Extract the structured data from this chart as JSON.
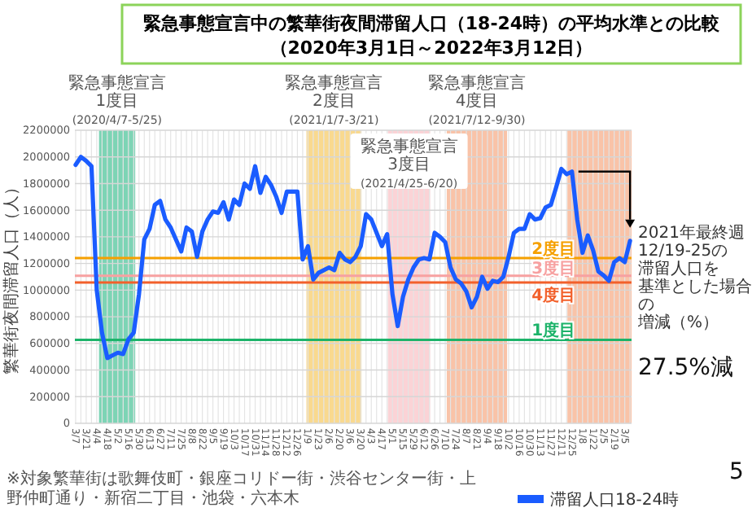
{
  "chart_data": {
    "type": "line",
    "title": "緊急事態宣言中の繁華街夜間滞留人口（18-24時）の平均水準との比較",
    "subtitle": "（2020年3月1日～2022年3月12日）",
    "ylabel": "繁華街夜間滞留人口（人）",
    "x": [
      "2020-03-07",
      "2020-03-14",
      "2020-03-21",
      "2020-03-28",
      "2020-04-04",
      "2020-04-11",
      "2020-04-18",
      "2020-04-25",
      "2020-05-02",
      "2020-05-09",
      "2020-05-16",
      "2020-05-23",
      "2020-05-30",
      "2020-06-06",
      "2020-06-13",
      "2020-06-20",
      "2020-06-27",
      "2020-07-04",
      "2020-07-11",
      "2020-07-18",
      "2020-07-25",
      "2020-08-01",
      "2020-08-08",
      "2020-08-15",
      "2020-08-22",
      "2020-08-29",
      "2020-09-05",
      "2020-09-12",
      "2020-09-19",
      "2020-09-26",
      "2020-10-03",
      "2020-10-10",
      "2020-10-17",
      "2020-10-24",
      "2020-10-31",
      "2020-11-07",
      "2020-11-14",
      "2020-11-21",
      "2020-11-28",
      "2020-12-05",
      "2020-12-12",
      "2020-12-19",
      "2020-12-26",
      "2021-01-02",
      "2021-01-09",
      "2021-01-16",
      "2021-01-23",
      "2021-01-30",
      "2021-02-06",
      "2021-02-13",
      "2021-02-20",
      "2021-02-27",
      "2021-03-06",
      "2021-03-13",
      "2021-03-20",
      "2021-03-27",
      "2021-04-03",
      "2021-04-10",
      "2021-04-17",
      "2021-04-24",
      "2021-05-01",
      "2021-05-08",
      "2021-05-15",
      "2021-05-22",
      "2021-05-29",
      "2021-06-05",
      "2021-06-12",
      "2021-06-19",
      "2021-06-26",
      "2021-07-03",
      "2021-07-10",
      "2021-07-17",
      "2021-07-24",
      "2021-07-31",
      "2021-08-07",
      "2021-08-14",
      "2021-08-21",
      "2021-08-28",
      "2021-09-04",
      "2021-09-11",
      "2021-09-18",
      "2021-09-25",
      "2021-10-02",
      "2021-10-09",
      "2021-10-16",
      "2021-10-23",
      "2021-10-30",
      "2021-11-06",
      "2021-11-13",
      "2021-11-20",
      "2021-11-27",
      "2021-12-04",
      "2021-12-11",
      "2021-12-18",
      "2021-12-25",
      "2022-01-01",
      "2022-01-08",
      "2022-01-15",
      "2022-01-22",
      "2022-01-29",
      "2022-02-05",
      "2022-02-12",
      "2022-02-19",
      "2022-02-26",
      "2022-03-05",
      "2022-03-12"
    ],
    "series": [
      {
        "name": "滞留人口18-24時",
        "color": "#1a5cff",
        "values": [
          1940000,
          2000000,
          1970000,
          1930000,
          1000000,
          680000,
          490000,
          510000,
          530000,
          520000,
          630000,
          680000,
          970000,
          1380000,
          1460000,
          1640000,
          1670000,
          1530000,
          1470000,
          1380000,
          1290000,
          1470000,
          1440000,
          1250000,
          1440000,
          1530000,
          1590000,
          1580000,
          1660000,
          1530000,
          1680000,
          1640000,
          1800000,
          1760000,
          1930000,
          1730000,
          1850000,
          1790000,
          1700000,
          1580000,
          1740000,
          1740000,
          1740000,
          1230000,
          1330000,
          1080000,
          1130000,
          1150000,
          1170000,
          1150000,
          1280000,
          1230000,
          1210000,
          1250000,
          1330000,
          1570000,
          1530000,
          1430000,
          1330000,
          1420000,
          970000,
          730000,
          950000,
          1080000,
          1170000,
          1230000,
          1240000,
          1230000,
          1430000,
          1400000,
          1360000,
          1170000,
          1080000,
          1050000,
          990000,
          870000,
          950000,
          1100000,
          1010000,
          1070000,
          1060000,
          1100000,
          1250000,
          1430000,
          1460000,
          1460000,
          1570000,
          1530000,
          1540000,
          1620000,
          1640000,
          1770000,
          1910000,
          1870000,
          1890000,
          1530000,
          1280000,
          1410000,
          1300000,
          1140000,
          1110000,
          1070000,
          1210000,
          1240000,
          1210000,
          1370000
        ]
      }
    ],
    "xlim": [
      "2020-03-06",
      "2022-03-14"
    ],
    "xticks": [
      {
        "value": "2020-03-07",
        "label": "3/7"
      },
      {
        "value": "2020-03-14",
        "label": null
      },
      {
        "value": "2020-03-21",
        "label": "3/21"
      },
      {
        "value": "2020-03-28",
        "label": null
      },
      {
        "value": "2020-04-04",
        "label": "4/4"
      },
      {
        "value": "2020-04-11",
        "label": null
      },
      {
        "value": "2020-04-18",
        "label": "4/18"
      },
      {
        "value": "2020-04-25",
        "label": null
      },
      {
        "value": "2020-05-02",
        "label": "5/2"
      },
      {
        "value": "2020-05-09",
        "label": null
      },
      {
        "value": "2020-05-16",
        "label": "5/16"
      },
      {
        "value": "2020-05-23",
        "label": null
      },
      {
        "value": "2020-05-30",
        "label": "5/30"
      },
      {
        "value": "2020-06-06",
        "label": null
      },
      {
        "value": "2020-06-13",
        "label": "6/13"
      },
      {
        "value": "2020-06-20",
        "label": null
      },
      {
        "value": "2020-06-27",
        "label": "6/27"
      },
      {
        "value": "2020-07-04",
        "label": null
      },
      {
        "value": "2020-07-11",
        "label": "7/11"
      },
      {
        "value": "2020-07-18",
        "label": null
      },
      {
        "value": "2020-07-25",
        "label": "7/25"
      },
      {
        "value": "2020-08-01",
        "label": null
      },
      {
        "value": "2020-08-08",
        "label": "8/8"
      },
      {
        "value": "2020-08-15",
        "label": null
      },
      {
        "value": "2020-08-22",
        "label": "8/22"
      },
      {
        "value": "2020-08-29",
        "label": null
      },
      {
        "value": "2020-09-05",
        "label": "9/5"
      },
      {
        "value": "2020-09-12",
        "label": null
      },
      {
        "value": "2020-09-19",
        "label": "9/19"
      },
      {
        "value": "2020-09-26",
        "label": null
      },
      {
        "value": "2020-10-03",
        "label": "10/3"
      },
      {
        "value": "2020-10-10",
        "label": null
      },
      {
        "value": "2020-10-17",
        "label": "10/17"
      },
      {
        "value": "2020-10-24",
        "label": null
      },
      {
        "value": "2020-10-31",
        "label": "10/31"
      },
      {
        "value": "2020-11-07",
        "label": null
      },
      {
        "value": "2020-11-14",
        "label": "11/14"
      },
      {
        "value": "2020-11-21",
        "label": null
      },
      {
        "value": "2020-11-28",
        "label": "11/28"
      },
      {
        "value": "2020-12-05",
        "label": null
      },
      {
        "value": "2020-12-12",
        "label": "12/12"
      },
      {
        "value": "2020-12-19",
        "label": null
      },
      {
        "value": "2020-12-26",
        "label": "12/26"
      },
      {
        "value": "2021-01-02",
        "label": null
      },
      {
        "value": "2021-01-09",
        "label": "1/9"
      },
      {
        "value": "2021-01-16",
        "label": null
      },
      {
        "value": "2021-01-23",
        "label": "1/23"
      },
      {
        "value": "2021-01-30",
        "label": null
      },
      {
        "value": "2021-02-06",
        "label": "2/6"
      },
      {
        "value": "2021-02-13",
        "label": null
      },
      {
        "value": "2021-02-20",
        "label": "2/20"
      },
      {
        "value": "2021-02-27",
        "label": null
      },
      {
        "value": "2021-03-06",
        "label": "3/6"
      },
      {
        "value": "2021-03-13",
        "label": null
      },
      {
        "value": "2021-03-20",
        "label": "3/20"
      },
      {
        "value": "2021-03-27",
        "label": null
      },
      {
        "value": "2021-04-03",
        "label": "4/3"
      },
      {
        "value": "2021-04-10",
        "label": null
      },
      {
        "value": "2021-04-17",
        "label": "4/17"
      },
      {
        "value": "2021-04-24",
        "label": null
      },
      {
        "value": "2021-05-01",
        "label": "5/1"
      },
      {
        "value": "2021-05-08",
        "label": null
      },
      {
        "value": "2021-05-15",
        "label": "5/15"
      },
      {
        "value": "2021-05-22",
        "label": null
      },
      {
        "value": "2021-05-29",
        "label": "5/29"
      },
      {
        "value": "2021-06-05",
        "label": null
      },
      {
        "value": "2021-06-12",
        "label": "6/12"
      },
      {
        "value": "2021-06-19",
        "label": null
      },
      {
        "value": "2021-06-26",
        "label": "6/26"
      },
      {
        "value": "2021-07-03",
        "label": null
      },
      {
        "value": "2021-07-10",
        "label": "7/10"
      },
      {
        "value": "2021-07-17",
        "label": null
      },
      {
        "value": "2021-07-24",
        "label": "7/24"
      },
      {
        "value": "2021-07-31",
        "label": null
      },
      {
        "value": "2021-08-07",
        "label": "8/7"
      },
      {
        "value": "2021-08-14",
        "label": null
      },
      {
        "value": "2021-08-21",
        "label": "8/21"
      },
      {
        "value": "2021-08-28",
        "label": null
      },
      {
        "value": "2021-09-04",
        "label": "9/4"
      },
      {
        "value": "2021-09-11",
        "label": null
      },
      {
        "value": "2021-09-18",
        "label": "9/18"
      },
      {
        "value": "2021-09-25",
        "label": null
      },
      {
        "value": "2021-10-02",
        "label": "10/2"
      },
      {
        "value": "2021-10-09",
        "label": null
      },
      {
        "value": "2021-10-16",
        "label": "10/16"
      },
      {
        "value": "2021-10-23",
        "label": null
      },
      {
        "value": "2021-10-30",
        "label": "10/30"
      },
      {
        "value": "2021-11-06",
        "label": null
      },
      {
        "value": "2021-11-13",
        "label": "11/13"
      },
      {
        "value": "2021-11-20",
        "label": null
      },
      {
        "value": "2021-11-27",
        "label": "11/27"
      },
      {
        "value": "2021-12-04",
        "label": null
      },
      {
        "value": "2021-12-11",
        "label": "12/11"
      },
      {
        "value": "2021-12-18",
        "label": null
      },
      {
        "value": "2021-12-25",
        "label": "12/25"
      },
      {
        "value": "2022-01-01",
        "label": null
      },
      {
        "value": "2022-01-08",
        "label": "1/8"
      },
      {
        "value": "2022-01-15",
        "label": null
      },
      {
        "value": "2022-01-22",
        "label": "1/22"
      },
      {
        "value": "2022-01-29",
        "label": null
      },
      {
        "value": "2022-02-05",
        "label": "2/5"
      },
      {
        "value": "2022-02-12",
        "label": null
      },
      {
        "value": "2022-02-19",
        "label": "2/19"
      },
      {
        "value": "2022-02-26",
        "label": null
      },
      {
        "value": "2022-03-05",
        "label": "3/5"
      },
      {
        "value": "2022-03-12",
        "label": null
      }
    ],
    "ylim": [
      0,
      2200000
    ],
    "yticks": [
      0,
      200000,
      400000,
      600000,
      800000,
      1000000,
      1200000,
      1400000,
      1600000,
      1800000,
      2000000,
      2200000
    ],
    "grid": true,
    "legend": "bottom",
    "line_style": "solid",
    "bands": [
      {
        "axis": "x",
        "from": "2020-04-07",
        "to": "2020-05-25",
        "label": "緊急事態宣言\n1度目\n(2020/4/7-5/25)",
        "color": "#7dd4b5"
      },
      {
        "axis": "x",
        "from": "2021-01-07",
        "to": "2021-03-21",
        "label": "緊急事態宣言\n2度目\n(2021/1/7-3/21)",
        "color": "#f9d98f"
      },
      {
        "axis": "x",
        "from": "2021-04-25",
        "to": "2021-06-20",
        "label": "緊急事態宣言\n3度目\n(2021/4/25-6/20)",
        "color": "#fbd3d6"
      },
      {
        "axis": "x",
        "from": "2021-07-12",
        "to": "2021-09-30",
        "label": "緊急事態宣言\n4度目\n(2021/7/12-9/30)",
        "color": "#f9c3a8"
      },
      {
        "axis": "x",
        "from": "2021-12-19",
        "to": "2022-03-14",
        "color": "#f9c3a8"
      }
    ],
    "ref_lines": [
      {
        "axis": "y",
        "value": 1240000,
        "label": "2度目",
        "color": "#f5a000"
      },
      {
        "axis": "y",
        "value": 1107000,
        "label": "3度目",
        "color": "#f7a1a1"
      },
      {
        "axis": "y",
        "value": 1057000,
        "label": "4度目",
        "color": "#f2602b"
      },
      {
        "axis": "y",
        "value": 627000,
        "label": "1度目",
        "color": "#1db36a"
      }
    ],
    "annotations": [
      "※対象繁華街は歌舞伎町・銀座コリドー街・渋谷センター街・上野仲町通り・新宿二丁目・池袋・六本木",
      {
        "text": "2021年最終週",
        "x": "2021-12-25",
        "y": 1890000
      },
      "12/19-25の",
      "滞留人口を",
      "基準とした場合の",
      "増減（%）",
      "27.5%減",
      "5"
    ]
  }
}
